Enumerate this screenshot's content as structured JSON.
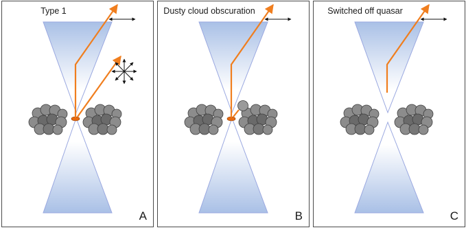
{
  "panels": [
    {
      "title": "Type 1",
      "letter": "A"
    },
    {
      "title": "Dusty cloud obscuration",
      "letter": "B"
    },
    {
      "title": "Switched off quasar",
      "letter": "C"
    }
  ],
  "colors": {
    "cone_edge": "#9aa8e0",
    "cone_fill": "#b8cde8",
    "ray": "#f07e1e",
    "core": "#e86a10",
    "cloud_light": "#a8a8a8",
    "cloud_dark": "#6a6a6a",
    "frame": "#4a4a4a"
  }
}
